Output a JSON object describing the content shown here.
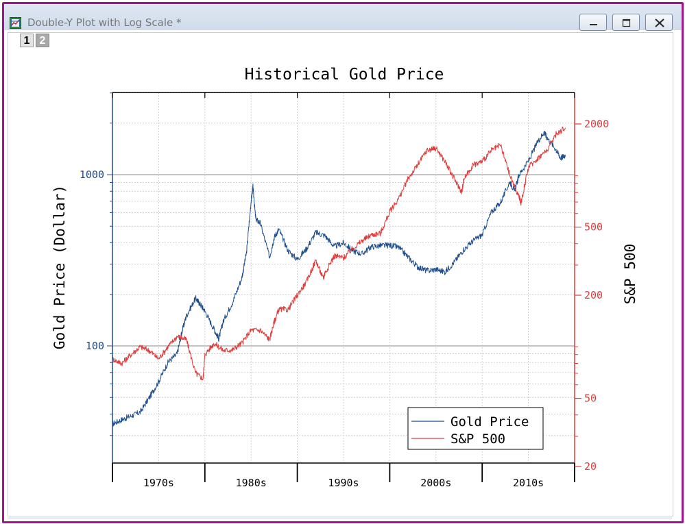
{
  "window": {
    "title": "Double-Y Plot with Log Scale *",
    "pages": [
      "1",
      "2"
    ],
    "active_page": "1"
  },
  "colors": {
    "gold": "#1f4e8c",
    "sp500": "#e03a3a",
    "frame": "#a0148c"
  },
  "icons": [
    "app-graph-icon",
    "minimize-icon",
    "maximize-icon",
    "close-icon"
  ],
  "chart_data": {
    "type": "line",
    "title": "Historical Gold Price",
    "xlabel": "",
    "ylabel_left": "Gold Price (Dollar)",
    "ylabel_right": "S&P 500",
    "x_range": [
      1965,
      2015
    ],
    "x_tick_labels": [
      "1970s",
      "1980s",
      "1990s",
      "2000s",
      "2010s"
    ],
    "y_left": {
      "scale": "log",
      "range": [
        20,
        3000
      ],
      "tick_labels": [
        "100",
        "1000"
      ],
      "color": "#1f4e8c"
    },
    "y_right": {
      "scale": "log",
      "range": [
        20,
        3000
      ],
      "tick_labels": [
        "20",
        "50",
        "200",
        "500",
        "2000"
      ],
      "color": "#e03a3a"
    },
    "grid": true,
    "legend": {
      "placement": "bottom-right",
      "entries": [
        "Gold Price",
        "S&P 500"
      ]
    },
    "series": [
      {
        "name": "Gold Price",
        "axis": "left",
        "color": "#1f4e8c",
        "x": [
          1965,
          1966,
          1967,
          1968,
          1969,
          1970,
          1971,
          1972,
          1972.5,
          1973,
          1974,
          1974.5,
          1975,
          1976,
          1976.5,
          1977,
          1978,
          1979,
          1979.5,
          1980,
          1980.2,
          1980.5,
          1981,
          1982,
          1982.5,
          1983,
          1984,
          1985,
          1986,
          1987,
          1988,
          1989,
          1990,
          1991,
          1992,
          1993,
          1994,
          1995,
          1996,
          1997,
          1998,
          1999,
          2000,
          2001,
          2002,
          2003,
          2004,
          2005,
          2006,
          2007,
          2008,
          2008.5,
          2009,
          2010,
          2011,
          2011.7,
          2012,
          2013,
          2013.5,
          2014
        ],
        "y": [
          35,
          37,
          39,
          41,
          50,
          62,
          80,
          90,
          120,
          150,
          190,
          175,
          160,
          125,
          110,
          140,
          180,
          250,
          350,
          700,
          850,
          550,
          520,
          330,
          430,
          480,
          360,
          320,
          370,
          460,
          440,
          380,
          400,
          360,
          345,
          380,
          385,
          387,
          375,
          330,
          290,
          275,
          280,
          270,
          310,
          365,
          410,
          445,
          605,
          690,
          910,
          800,
          1000,
          1200,
          1550,
          1780,
          1650,
          1400,
          1250,
          1300
        ]
      },
      {
        "name": "S&P 500",
        "axis": "right",
        "color": "#e03a3a",
        "x": [
          1965,
          1966,
          1967,
          1968,
          1969,
          1970,
          1971,
          1972,
          1973,
          1974,
          1974.8,
          1975,
          1976,
          1977,
          1978,
          1979,
          1980,
          1981,
          1982,
          1982.5,
          1983,
          1984,
          1985,
          1986,
          1987,
          1987.8,
          1988,
          1989,
          1990,
          1991,
          1992,
          1993,
          1994,
          1995,
          1996,
          1997,
          1998,
          1999,
          2000,
          2001,
          2002,
          2002.8,
          2003,
          2004,
          2005,
          2006,
          2007,
          2008,
          2009,
          2009.2,
          2010,
          2011,
          2012,
          2013,
          2014
        ],
        "y": [
          85,
          80,
          90,
          100,
          95,
          85,
          100,
          115,
          110,
          70,
          65,
          90,
          105,
          95,
          96,
          105,
          125,
          125,
          110,
          140,
          165,
          165,
          200,
          240,
          320,
          250,
          270,
          340,
          330,
          375,
          415,
          450,
          460,
          615,
          740,
          960,
          1150,
          1400,
          1450,
          1200,
          950,
          800,
          950,
          1150,
          1210,
          1400,
          1500,
          1000,
          750,
          690,
          1120,
          1260,
          1400,
          1750,
          1900
        ]
      }
    ]
  }
}
